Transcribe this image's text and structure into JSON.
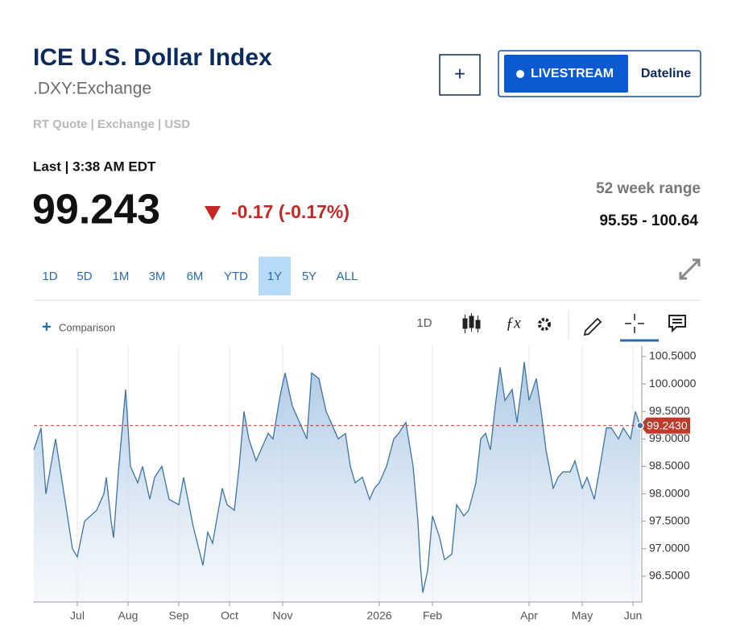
{
  "header": {
    "title": "ICE U.S. Dollar Index",
    "symbol": ".DXY:Exchange",
    "meta": "RT Quote | Exchange | USD"
  },
  "buttons": {
    "add": "+",
    "livestream": "LIVESTREAM",
    "dateline": "Dateline"
  },
  "quote": {
    "last_label": "Last | 3:38 AM EDT",
    "price": "99.243",
    "change": "-0.17 (-0.17%)",
    "range_label": "52 week range",
    "range": "95.55 - 100.64"
  },
  "ranges": [
    "1D",
    "5D",
    "1M",
    "3M",
    "6M",
    "YTD",
    "1Y",
    "5Y",
    "ALL"
  ],
  "selected_range": "1Y",
  "toolbar": {
    "comparison": "Comparison",
    "interval": "1D"
  },
  "chart_data": {
    "type": "area",
    "color": "#3d74a3",
    "x": [
      0,
      3,
      5,
      9,
      16,
      18,
      21,
      26,
      29,
      30,
      32,
      33,
      35,
      38,
      40,
      43,
      45,
      48,
      50,
      53,
      56,
      60,
      62,
      66,
      70,
      72,
      74,
      78,
      80,
      83,
      85,
      87,
      89,
      92,
      95,
      97,
      99,
      102,
      104,
      107,
      110,
      113,
      115,
      118,
      121,
      123,
      126,
      129,
      131,
      133,
      136,
      139,
      141,
      143,
      146,
      149,
      151,
      154,
      157,
      159,
      160,
      161,
      163,
      165,
      168,
      170,
      173,
      175,
      178,
      180,
      183,
      185,
      187,
      189,
      191,
      193,
      195,
      198,
      200,
      202,
      203,
      205,
      208,
      210,
      212,
      215,
      217,
      219,
      222,
      224,
      227,
      229,
      232,
      234,
      237,
      239,
      242,
      244,
      247,
      249,
      251
    ],
    "values": [
      98.8,
      99.2,
      98.0,
      99.0,
      97.0,
      96.85,
      97.5,
      97.7,
      98.0,
      98.3,
      97.5,
      97.2,
      98.4,
      99.9,
      98.5,
      98.2,
      98.5,
      97.9,
      98.3,
      98.5,
      97.9,
      97.8,
      98.3,
      97.4,
      96.7,
      97.3,
      97.1,
      98.1,
      97.8,
      97.7,
      98.5,
      99.5,
      99.0,
      98.6,
      98.9,
      99.1,
      99.0,
      99.8,
      100.2,
      99.6,
      99.3,
      99.0,
      100.2,
      100.1,
      99.5,
      99.3,
      99.0,
      99.1,
      98.5,
      98.2,
      98.3,
      97.9,
      98.1,
      98.2,
      98.5,
      99.0,
      99.1,
      99.3,
      98.5,
      97.5,
      96.7,
      96.2,
      96.6,
      97.6,
      97.2,
      96.8,
      96.9,
      97.8,
      97.6,
      97.7,
      98.2,
      99.0,
      99.1,
      98.8,
      99.6,
      100.3,
      99.7,
      99.9,
      99.3,
      100.0,
      100.4,
      99.7,
      100.1,
      99.5,
      98.8,
      98.1,
      98.3,
      98.4,
      98.4,
      98.6,
      98.1,
      98.3,
      97.9,
      98.4,
      99.2,
      99.2,
      99.0,
      99.2,
      99.0,
      99.5,
      99.243
    ],
    "xlim": [
      0,
      251
    ],
    "ylim": [
      96.03,
      100.69
    ],
    "xticks": [
      {
        "value": 18,
        "label": "Jul"
      },
      {
        "value": 39,
        "label": "Aug"
      },
      {
        "value": 60,
        "label": "Sep"
      },
      {
        "value": 81,
        "label": "Oct"
      },
      {
        "value": 103,
        "label": "Nov"
      },
      {
        "value": 143,
        "label": "2026"
      },
      {
        "value": 165,
        "label": "Feb"
      },
      {
        "value": 205,
        "label": "Apr"
      },
      {
        "value": 227,
        "label": "May"
      },
      {
        "value": 248,
        "label": "Jun"
      }
    ],
    "yticks": [
      {
        "value": 96.5,
        "label": "96.5000"
      },
      {
        "value": 97,
        "label": "97.0000"
      },
      {
        "value": 97.5,
        "label": "97.5000"
      },
      {
        "value": 98,
        "label": "98.0000"
      },
      {
        "value": 98.5,
        "label": "98.5000"
      },
      {
        "value": 99,
        "label": "99.0000"
      },
      {
        "value": 99.5,
        "label": "99.5000"
      },
      {
        "value": 100,
        "label": "100.0000"
      },
      {
        "value": 100.5,
        "label": "100.5000"
      }
    ],
    "reference_line": {
      "value": 99.243,
      "label": "99.2430",
      "color": "#c0392b"
    },
    "grid": true
  }
}
